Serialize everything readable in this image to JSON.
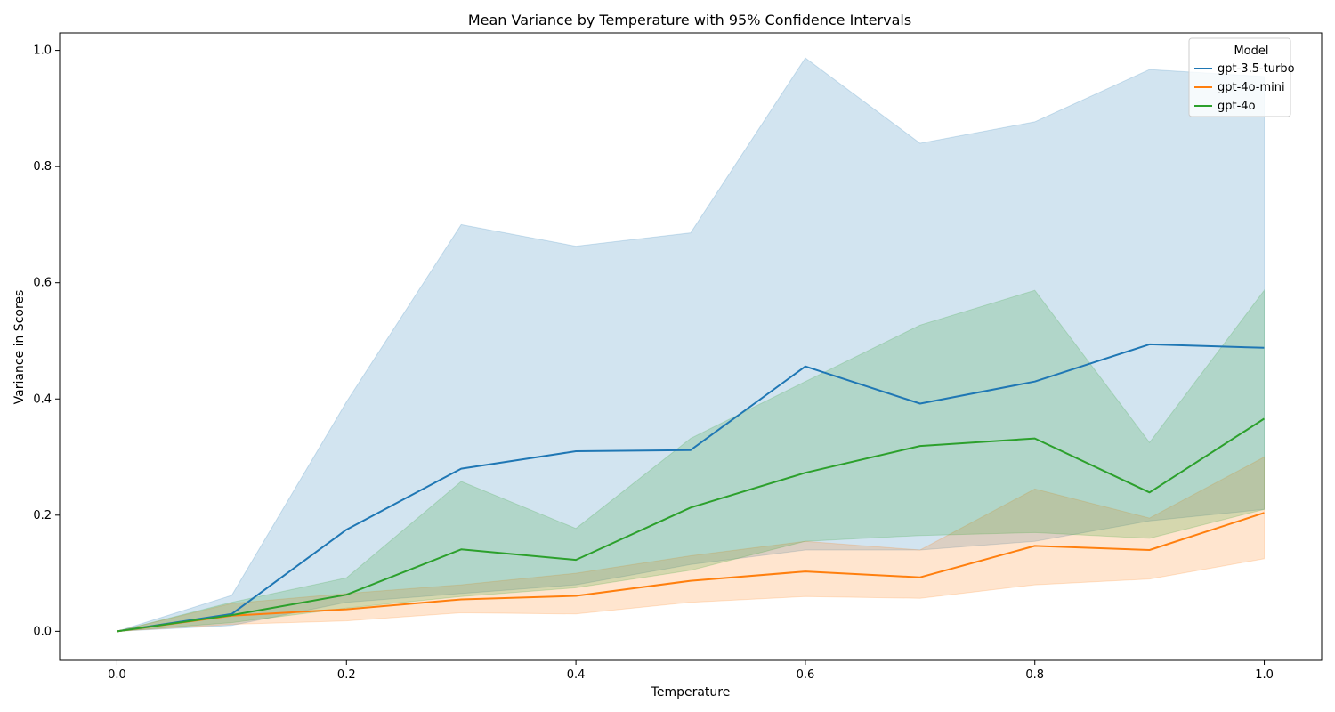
{
  "chart_data": {
    "type": "line",
    "title": "Mean Variance by Temperature with 95% Confidence Intervals",
    "xlabel": "Temperature",
    "ylabel": "Variance in Scores",
    "xlim": [
      -0.05,
      1.05
    ],
    "ylim": [
      -0.05,
      1.03
    ],
    "x_ticks": [
      "0.0",
      "0.2",
      "0.4",
      "0.6",
      "0.8",
      "1.0"
    ],
    "y_ticks": [
      "0.0",
      "0.2",
      "0.4",
      "0.6",
      "0.8",
      "1.0"
    ],
    "x": [
      0.0,
      0.1,
      0.2,
      0.3,
      0.4,
      0.5,
      0.6,
      0.7,
      0.8,
      0.9,
      1.0
    ],
    "grid": false,
    "legend": {
      "title": "Model",
      "position": "top-right"
    },
    "series": [
      {
        "name": "gpt-3.5-turbo",
        "color": "#1f77b4",
        "values": [
          0.0,
          0.03,
          0.175,
          0.28,
          0.31,
          0.312,
          0.456,
          0.392,
          0.43,
          0.494,
          0.488
        ],
        "ci_lower": [
          0.0,
          0.01,
          0.05,
          0.065,
          0.08,
          0.115,
          0.14,
          0.14,
          0.155,
          0.19,
          0.21
        ],
        "ci_upper": [
          0.0,
          0.062,
          0.395,
          0.7,
          0.663,
          0.686,
          0.987,
          0.84,
          0.877,
          0.967,
          0.955
        ]
      },
      {
        "name": "gpt-4o-mini",
        "color": "#ff7f0e",
        "values": [
          0.0,
          0.027,
          0.038,
          0.055,
          0.061,
          0.087,
          0.103,
          0.093,
          0.147,
          0.14,
          0.204
        ],
        "ci_lower": [
          0.0,
          0.012,
          0.018,
          0.032,
          0.03,
          0.05,
          0.06,
          0.057,
          0.08,
          0.09,
          0.125
        ],
        "ci_upper": [
          0.0,
          0.048,
          0.065,
          0.08,
          0.1,
          0.13,
          0.155,
          0.14,
          0.245,
          0.195,
          0.3
        ]
      },
      {
        "name": "gpt-4o",
        "color": "#2ca02c",
        "values": [
          0.0,
          0.028,
          0.063,
          0.141,
          0.123,
          0.213,
          0.273,
          0.319,
          0.332,
          0.239,
          0.366
        ],
        "ci_lower": [
          0.0,
          0.015,
          0.04,
          0.06,
          0.075,
          0.105,
          0.155,
          0.165,
          0.17,
          0.16,
          0.21
        ],
        "ci_upper": [
          0.0,
          0.05,
          0.092,
          0.258,
          0.177,
          0.332,
          0.43,
          0.527,
          0.587,
          0.325,
          0.587
        ]
      }
    ]
  }
}
